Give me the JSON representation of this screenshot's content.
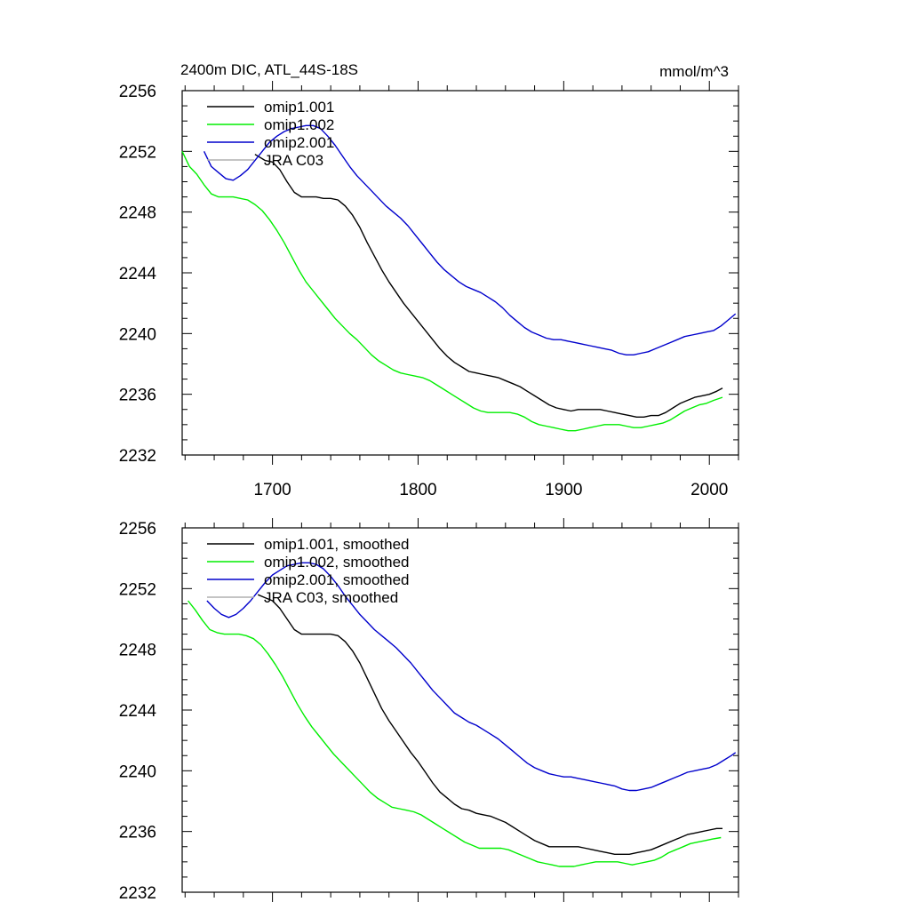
{
  "colors": {
    "omip1_001": "#000000",
    "omip1_002": "#00ee00",
    "omip2_001": "#0000cc",
    "jra": "#b0b0b0"
  },
  "chart_data": [
    {
      "type": "line",
      "title": "2400m DIC, ATL_44S-18S",
      "units": "mmol/m^3",
      "xlim": [
        1638,
        2020
      ],
      "ylim": [
        2232,
        2256
      ],
      "xticks": [
        "1700",
        "1800",
        "1900",
        "2000"
      ],
      "yticks": [
        "2232",
        "2236",
        "2240",
        "2244",
        "2248",
        "2252",
        "2256"
      ],
      "legend_position": "top-left",
      "series": [
        {
          "name": "omip1.001",
          "color_key": "omip1_001",
          "x": [
            1688,
            1695,
            1700,
            1705,
            1710,
            1715,
            1720,
            1725,
            1730,
            1735,
            1740,
            1745,
            1750,
            1755,
            1760,
            1765,
            1770,
            1775,
            1780,
            1785,
            1790,
            1795,
            1800,
            1805,
            1810,
            1815,
            1820,
            1825,
            1830,
            1835,
            1840,
            1845,
            1850,
            1855,
            1860,
            1865,
            1870,
            1875,
            1880,
            1885,
            1890,
            1895,
            1900,
            1905,
            1910,
            1915,
            1920,
            1925,
            1930,
            1935,
            1940,
            1945,
            1950,
            1955,
            1960,
            1965,
            1970,
            1975,
            1980,
            1985,
            1990,
            1995,
            2000,
            2005,
            2009
          ],
          "y": [
            2251.8,
            2251.4,
            2251.3,
            2250.8,
            2250.0,
            2249.3,
            2249.0,
            2249.0,
            2249.0,
            2248.9,
            2248.9,
            2248.8,
            2248.4,
            2247.8,
            2247.0,
            2246.0,
            2245.1,
            2244.2,
            2243.4,
            2242.7,
            2242.0,
            2241.4,
            2240.8,
            2240.2,
            2239.6,
            2239.0,
            2238.5,
            2238.1,
            2237.8,
            2237.5,
            2237.4,
            2237.3,
            2237.2,
            2237.1,
            2236.9,
            2236.7,
            2236.5,
            2236.2,
            2235.9,
            2235.6,
            2235.3,
            2235.1,
            2235.0,
            2234.9,
            2235.0,
            2235.0,
            2235.0,
            2235.0,
            2234.9,
            2234.8,
            2234.7,
            2234.6,
            2234.5,
            2234.5,
            2234.6,
            2234.6,
            2234.8,
            2235.1,
            2235.4,
            2235.6,
            2235.8,
            2235.9,
            2236.0,
            2236.2,
            2236.4
          ]
        },
        {
          "name": "omip1.002",
          "color_key": "omip1_002",
          "x": [
            1638,
            1643,
            1648,
            1653,
            1658,
            1663,
            1668,
            1673,
            1678,
            1683,
            1688,
            1693,
            1698,
            1703,
            1708,
            1713,
            1718,
            1723,
            1728,
            1733,
            1738,
            1743,
            1748,
            1753,
            1758,
            1763,
            1768,
            1773,
            1778,
            1783,
            1788,
            1793,
            1798,
            1803,
            1808,
            1813,
            1818,
            1823,
            1828,
            1833,
            1838,
            1843,
            1848,
            1853,
            1858,
            1863,
            1868,
            1873,
            1878,
            1883,
            1888,
            1893,
            1898,
            1903,
            1908,
            1913,
            1918,
            1923,
            1928,
            1933,
            1938,
            1943,
            1948,
            1953,
            1958,
            1963,
            1968,
            1973,
            1978,
            1983,
            1988,
            1993,
            1998,
            2003,
            2009
          ],
          "y": [
            2252.0,
            2251.0,
            2250.5,
            2249.8,
            2249.2,
            2249.0,
            2249.0,
            2249.0,
            2248.9,
            2248.8,
            2248.5,
            2248.1,
            2247.5,
            2246.8,
            2246.0,
            2245.1,
            2244.2,
            2243.4,
            2242.8,
            2242.2,
            2241.6,
            2241.0,
            2240.5,
            2240.0,
            2239.6,
            2239.1,
            2238.6,
            2238.2,
            2237.9,
            2237.6,
            2237.4,
            2237.3,
            2237.2,
            2237.1,
            2236.9,
            2236.6,
            2236.3,
            2236.0,
            2235.7,
            2235.4,
            2235.1,
            2234.9,
            2234.8,
            2234.8,
            2234.8,
            2234.8,
            2234.7,
            2234.5,
            2234.2,
            2234.0,
            2233.9,
            2233.8,
            2233.7,
            2233.6,
            2233.6,
            2233.7,
            2233.8,
            2233.9,
            2234.0,
            2234.0,
            2234.0,
            2233.9,
            2233.8,
            2233.8,
            2233.9,
            2234.0,
            2234.1,
            2234.3,
            2234.6,
            2234.9,
            2235.1,
            2235.3,
            2235.4,
            2235.6,
            2235.8
          ]
        },
        {
          "name": "omip2.001",
          "color_key": "omip2_001",
          "x": [
            1653,
            1658,
            1663,
            1668,
            1673,
            1678,
            1683,
            1688,
            1693,
            1698,
            1703,
            1708,
            1713,
            1718,
            1723,
            1728,
            1733,
            1738,
            1743,
            1748,
            1753,
            1758,
            1763,
            1768,
            1773,
            1778,
            1783,
            1788,
            1793,
            1798,
            1803,
            1808,
            1813,
            1818,
            1823,
            1828,
            1833,
            1838,
            1843,
            1848,
            1853,
            1858,
            1863,
            1868,
            1873,
            1878,
            1883,
            1888,
            1893,
            1898,
            1903,
            1908,
            1913,
            1918,
            1923,
            1928,
            1933,
            1938,
            1943,
            1948,
            1953,
            1958,
            1963,
            1968,
            1973,
            1978,
            1983,
            1988,
            1993,
            1998,
            2003,
            2008,
            2013,
            2018
          ],
          "y": [
            2252.0,
            2251.0,
            2250.6,
            2250.2,
            2250.1,
            2250.4,
            2250.8,
            2251.4,
            2252.0,
            2252.6,
            2253.0,
            2253.3,
            2253.5,
            2253.6,
            2253.7,
            2253.7,
            2253.5,
            2253.0,
            2252.4,
            2251.7,
            2251.0,
            2250.4,
            2249.9,
            2249.4,
            2248.9,
            2248.4,
            2248.0,
            2247.6,
            2247.1,
            2246.5,
            2245.9,
            2245.3,
            2244.7,
            2244.2,
            2243.8,
            2243.4,
            2243.1,
            2242.9,
            2242.7,
            2242.4,
            2242.1,
            2241.7,
            2241.2,
            2240.8,
            2240.4,
            2240.1,
            2239.9,
            2239.7,
            2239.6,
            2239.6,
            2239.5,
            2239.4,
            2239.3,
            2239.2,
            2239.1,
            2239.0,
            2238.9,
            2238.7,
            2238.6,
            2238.6,
            2238.7,
            2238.8,
            2239.0,
            2239.2,
            2239.4,
            2239.6,
            2239.8,
            2239.9,
            2240.0,
            2240.1,
            2240.2,
            2240.5,
            2240.9,
            2241.3
          ]
        },
        {
          "name": "JRA C03",
          "color_key": "jra",
          "x": [],
          "y": []
        }
      ]
    },
    {
      "type": "line",
      "title": "",
      "units": "",
      "xlim": [
        1638,
        2020
      ],
      "ylim": [
        2232,
        2256
      ],
      "xticks": [
        "",
        "",
        "",
        ""
      ],
      "yticks": [
        "2232",
        "2236",
        "2240",
        "2244",
        "2248",
        "2252",
        "2256"
      ],
      "legend_position": "top-left",
      "series": [
        {
          "name": "omip1.001, smoothed",
          "color_key": "omip1_001",
          "x": [
            1690,
            1695,
            1700,
            1705,
            1710,
            1715,
            1720,
            1725,
            1730,
            1735,
            1740,
            1745,
            1750,
            1755,
            1760,
            1765,
            1770,
            1775,
            1780,
            1785,
            1790,
            1795,
            1800,
            1805,
            1810,
            1815,
            1820,
            1825,
            1830,
            1835,
            1840,
            1845,
            1850,
            1855,
            1860,
            1865,
            1870,
            1875,
            1880,
            1885,
            1890,
            1895,
            1900,
            1905,
            1910,
            1915,
            1920,
            1925,
            1930,
            1935,
            1940,
            1945,
            1950,
            1955,
            1960,
            1965,
            1970,
            1975,
            1980,
            1985,
            1990,
            1995,
            2000,
            2005,
            2009
          ],
          "y": [
            2251.6,
            2251.4,
            2251.2,
            2250.7,
            2250.0,
            2249.3,
            2249.0,
            2249.0,
            2249.0,
            2249.0,
            2249.0,
            2248.9,
            2248.5,
            2247.9,
            2247.1,
            2246.1,
            2245.1,
            2244.1,
            2243.3,
            2242.6,
            2241.9,
            2241.2,
            2240.6,
            2239.9,
            2239.2,
            2238.6,
            2238.2,
            2237.8,
            2237.5,
            2237.4,
            2237.2,
            2237.1,
            2237.0,
            2236.8,
            2236.6,
            2236.3,
            2236.0,
            2235.7,
            2235.4,
            2235.2,
            2235.0,
            2235.0,
            2235.0,
            2235.0,
            2235.0,
            2234.9,
            2234.8,
            2234.7,
            2234.6,
            2234.5,
            2234.5,
            2234.5,
            2234.6,
            2234.7,
            2234.8,
            2235.0,
            2235.2,
            2235.4,
            2235.6,
            2235.8,
            2235.9,
            2236.0,
            2236.1,
            2236.2,
            2236.2
          ]
        },
        {
          "name": "omip1.002, smoothed",
          "color_key": "omip1_002",
          "x": [
            1642,
            1647,
            1652,
            1657,
            1662,
            1667,
            1672,
            1677,
            1682,
            1687,
            1692,
            1697,
            1702,
            1707,
            1712,
            1717,
            1722,
            1727,
            1732,
            1737,
            1742,
            1747,
            1752,
            1757,
            1762,
            1767,
            1772,
            1777,
            1782,
            1787,
            1792,
            1797,
            1802,
            1807,
            1812,
            1817,
            1822,
            1827,
            1832,
            1837,
            1842,
            1847,
            1852,
            1857,
            1862,
            1867,
            1872,
            1877,
            1882,
            1887,
            1892,
            1897,
            1902,
            1907,
            1912,
            1917,
            1922,
            1927,
            1932,
            1937,
            1942,
            1947,
            1952,
            1957,
            1962,
            1967,
            1972,
            1977,
            1982,
            1987,
            1992,
            1997,
            2002,
            2008
          ],
          "y": [
            2251.2,
            2250.6,
            2249.9,
            2249.3,
            2249.1,
            2249.0,
            2249.0,
            2249.0,
            2248.9,
            2248.7,
            2248.3,
            2247.7,
            2247.0,
            2246.2,
            2245.3,
            2244.4,
            2243.6,
            2242.9,
            2242.3,
            2241.7,
            2241.1,
            2240.6,
            2240.1,
            2239.6,
            2239.1,
            2238.6,
            2238.2,
            2237.9,
            2237.6,
            2237.5,
            2237.4,
            2237.3,
            2237.1,
            2236.8,
            2236.5,
            2236.2,
            2235.9,
            2235.6,
            2235.3,
            2235.1,
            2234.9,
            2234.9,
            2234.9,
            2234.9,
            2234.8,
            2234.6,
            2234.4,
            2234.2,
            2234.0,
            2233.9,
            2233.8,
            2233.7,
            2233.7,
            2233.7,
            2233.8,
            2233.9,
            2234.0,
            2234.0,
            2234.0,
            2234.0,
            2233.9,
            2233.8,
            2233.9,
            2234.0,
            2234.1,
            2234.3,
            2234.6,
            2234.8,
            2235.0,
            2235.2,
            2235.3,
            2235.4,
            2235.5,
            2235.6
          ]
        },
        {
          "name": "omip2.001, smoothed",
          "color_key": "omip2_001",
          "x": [
            1655,
            1660,
            1665,
            1670,
            1675,
            1680,
            1685,
            1690,
            1695,
            1700,
            1705,
            1710,
            1715,
            1720,
            1725,
            1730,
            1735,
            1740,
            1745,
            1750,
            1755,
            1760,
            1765,
            1770,
            1775,
            1780,
            1785,
            1790,
            1795,
            1800,
            1805,
            1810,
            1815,
            1820,
            1825,
            1830,
            1835,
            1840,
            1845,
            1850,
            1855,
            1860,
            1865,
            1870,
            1875,
            1880,
            1885,
            1890,
            1895,
            1900,
            1905,
            1910,
            1915,
            1920,
            1925,
            1930,
            1935,
            1940,
            1945,
            1950,
            1955,
            1960,
            1965,
            1970,
            1975,
            1980,
            1985,
            1990,
            1995,
            2000,
            2005,
            2010,
            2015,
            2018
          ],
          "y": [
            2251.2,
            2250.7,
            2250.3,
            2250.1,
            2250.3,
            2250.7,
            2251.2,
            2251.8,
            2252.4,
            2252.9,
            2253.2,
            2253.5,
            2253.6,
            2253.7,
            2253.7,
            2253.6,
            2253.3,
            2252.8,
            2252.2,
            2251.5,
            2250.9,
            2250.3,
            2249.8,
            2249.3,
            2248.9,
            2248.5,
            2248.1,
            2247.6,
            2247.1,
            2246.5,
            2245.9,
            2245.3,
            2244.8,
            2244.3,
            2243.8,
            2243.5,
            2243.2,
            2243.0,
            2242.7,
            2242.4,
            2242.1,
            2241.7,
            2241.3,
            2240.9,
            2240.5,
            2240.2,
            2240.0,
            2239.8,
            2239.7,
            2239.6,
            2239.6,
            2239.5,
            2239.4,
            2239.3,
            2239.2,
            2239.1,
            2239.0,
            2238.8,
            2238.7,
            2238.7,
            2238.8,
            2238.9,
            2239.1,
            2239.3,
            2239.5,
            2239.7,
            2239.9,
            2240.0,
            2240.1,
            2240.2,
            2240.4,
            2240.7,
            2241.0,
            2241.2
          ]
        },
        {
          "name": "JRA C03, smoothed",
          "color_key": "jra",
          "x": [],
          "y": []
        }
      ]
    }
  ]
}
